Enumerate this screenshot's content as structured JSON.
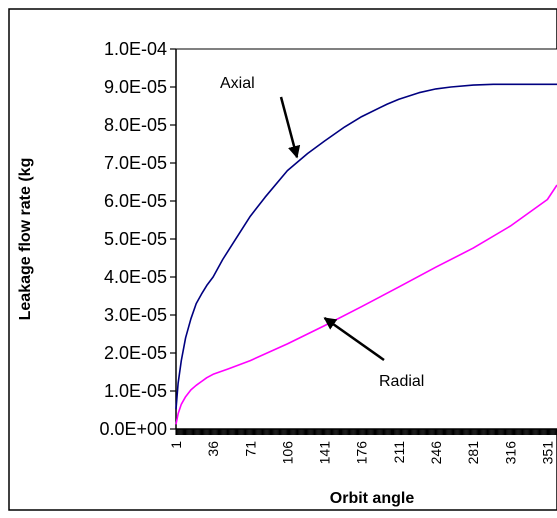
{
  "chart_data": {
    "type": "line",
    "title": "",
    "xlabel": "Orbit angle",
    "ylabel": "Leakage flow rate (kg",
    "x_ticks": [
      "1",
      "36",
      "71",
      "106",
      "141",
      "176",
      "211",
      "246",
      "281",
      "316",
      "351"
    ],
    "y_ticks": [
      "0.0E+00",
      "1.0E-05",
      "2.0E-05",
      "3.0E-05",
      "4.0E-05",
      "5.0E-05",
      "6.0E-05",
      "7.0E-05",
      "8.0E-05",
      "9.0E-05",
      "1.0E-04"
    ],
    "xlim": [
      1,
      360
    ],
    "ylim": [
      0,
      0.0001
    ],
    "grid": false,
    "legend": "none",
    "series": [
      {
        "name": "Axial",
        "color": "#000080",
        "x": [
          1,
          3,
          6,
          10,
          15,
          20,
          25,
          30,
          36,
          45,
          55,
          71,
          85,
          106,
          125,
          141,
          160,
          176,
          200,
          211,
          230,
          246,
          260,
          281,
          300,
          316,
          335,
          351,
          360
        ],
        "values": [
          5.2e-06,
          1.2e-05,
          1.8e-05,
          2.4e-05,
          2.9e-05,
          3.3e-05,
          3.55e-05,
          3.78e-05,
          4e-05,
          4.46e-05,
          4.9e-05,
          5.6e-05,
          6.1e-05,
          6.8e-05,
          7.25e-05,
          7.58e-05,
          7.95e-05,
          8.22e-05,
          8.55e-05,
          8.68e-05,
          8.85e-05,
          8.95e-05,
          9e-05,
          9.05e-05,
          9.07e-05,
          9.07e-05,
          9.07e-05,
          9.07e-05,
          9.07e-05
        ]
      },
      {
        "name": "Radial",
        "color": "#ff00ff",
        "x": [
          1,
          3,
          6,
          10,
          15,
          20,
          25,
          30,
          36,
          50,
          71,
          106,
          141,
          176,
          211,
          246,
          281,
          316,
          351,
          360
        ],
        "values": [
          1.2e-06,
          4e-06,
          6.5e-06,
          8.5e-06,
          1.03e-05,
          1.15e-05,
          1.25e-05,
          1.35e-05,
          1.44e-05,
          1.58e-05,
          1.8e-05,
          2.24e-05,
          2.72e-05,
          3.22e-05,
          3.74e-05,
          4.26e-05,
          4.76e-05,
          5.34e-05,
          6.04e-05,
          6.42e-05
        ]
      }
    ],
    "annotations": [
      {
        "text": "Axial",
        "series": "Axial",
        "x": 115,
        "y": 7.15e-05
      },
      {
        "text": "Radial",
        "series": "Radial",
        "x": 141,
        "y": 2.92e-05
      }
    ]
  }
}
